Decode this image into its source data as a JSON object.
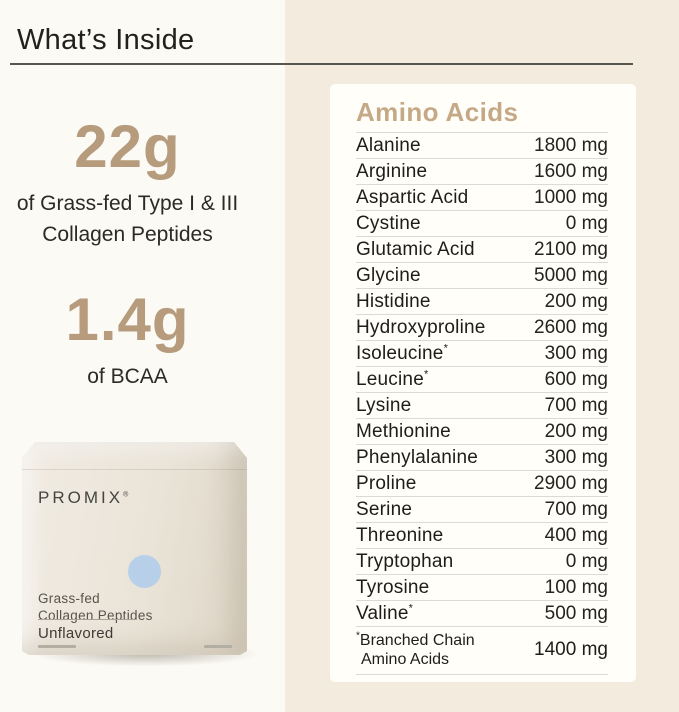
{
  "page": {
    "title": "What’s Inside"
  },
  "stat_collagen": {
    "value": "22g",
    "label_line1": "of Grass-fed Type I & III",
    "label_line2": "Collagen Peptides"
  },
  "stat_bcaa": {
    "value": "1.4g",
    "label_line1": "of BCAA"
  },
  "product": {
    "brand": "PROMIX",
    "brand_mark": "®",
    "name_line1": "Grass-fed",
    "name_line2": "Collagen Peptides",
    "flavor": "Unflavored"
  },
  "amino_table": {
    "title": "Amino Acids",
    "unit": "mg",
    "rows": [
      {
        "name": "Alanine",
        "asterisk": false,
        "value": "1800 mg"
      },
      {
        "name": "Arginine",
        "asterisk": false,
        "value": "1600 mg"
      },
      {
        "name": "Aspartic Acid",
        "asterisk": false,
        "value": "1000 mg"
      },
      {
        "name": "Cystine",
        "asterisk": false,
        "value": "0 mg"
      },
      {
        "name": "Glutamic Acid",
        "asterisk": false,
        "value": "2100 mg"
      },
      {
        "name": "Glycine",
        "asterisk": false,
        "value": "5000 mg"
      },
      {
        "name": "Histidine",
        "asterisk": false,
        "value": "200 mg"
      },
      {
        "name": "Hydroxyproline",
        "asterisk": false,
        "value": "2600 mg"
      },
      {
        "name": "Isoleucine",
        "asterisk": true,
        "value": "300 mg"
      },
      {
        "name": "Leucine",
        "asterisk": true,
        "value": "600 mg"
      },
      {
        "name": "Lysine",
        "asterisk": false,
        "value": "700 mg"
      },
      {
        "name": "Methionine",
        "asterisk": false,
        "value": "200 mg"
      },
      {
        "name": "Phenylalanine",
        "asterisk": false,
        "value": "300 mg"
      },
      {
        "name": "Proline",
        "asterisk": false,
        "value": "2900 mg"
      },
      {
        "name": "Serine",
        "asterisk": false,
        "value": "700 mg"
      },
      {
        "name": "Threonine",
        "asterisk": false,
        "value": "400 mg"
      },
      {
        "name": "Tryptophan",
        "asterisk": false,
        "value": "0 mg"
      },
      {
        "name": "Tyrosine",
        "asterisk": false,
        "value": "100 mg"
      },
      {
        "name": "Valine",
        "asterisk": true,
        "value": "500 mg"
      }
    ],
    "footnote": {
      "asterisk": "*",
      "label_line1": "Branched Chain",
      "label_line2": "Amino Acids",
      "value": "1400 mg"
    }
  },
  "colors": {
    "accent_tan": "#b69b7d",
    "heading_tan": "#c5a987",
    "background_beige": "#f4ebdf",
    "panel_white": "#fbfaf4",
    "card_white": "#fffef9",
    "circle_blue": "#b7cfe9",
    "text_dark": "#1d1d1a"
  }
}
